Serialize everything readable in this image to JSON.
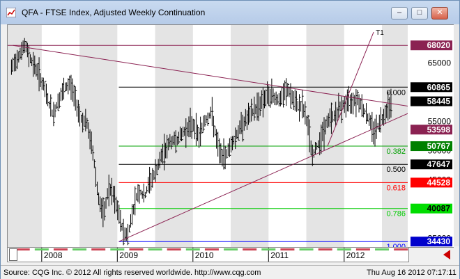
{
  "window": {
    "title": "QFA - FTSE Index, Adjusted Weekly Continuation",
    "buttons": {
      "minimize": "–",
      "maximize": "□",
      "close": "✕"
    }
  },
  "status_bar": {
    "source": "Source: CQG Inc. © 2012 All rights reserved worldwide. http://www.cqg.com",
    "timestamp": "Thu Aug 16 2012 07:17:11"
  },
  "colors": {
    "price_bars": "#000000",
    "trendline": "#8b2252",
    "fib_0": "#000000",
    "fib_382": "#00a000",
    "fib_618": "#ff0000",
    "fib_786": "#00cc00",
    "fib_100": "#0000ff",
    "year_band": "#e4e4e4"
  },
  "chart_data": {
    "type": "line",
    "title": "QFA - FTSE Index, Adjusted Weekly Continuation",
    "x_tick_labels": [
      "2008",
      "2009",
      "2010",
      "2011",
      "2012"
    ],
    "y_tick_labels": [
      65000,
      55000,
      50000,
      45000,
      35000
    ],
    "ylim": [
      33500,
      71500
    ],
    "xlim": [
      2007.55,
      2012.85
    ],
    "price_labels": [
      {
        "value": 68020,
        "text": "68020",
        "bg": "#8b2252",
        "fg": "#ffffff"
      },
      {
        "value": 60865,
        "text": "60865",
        "bg": "#000000",
        "fg": "#ffffff"
      },
      {
        "value": 58445,
        "text": "58445",
        "bg": "#000000",
        "fg": "#ffffff"
      },
      {
        "value": 53598,
        "text": "53598",
        "bg": "#8b2252",
        "fg": "#ffffff"
      },
      {
        "value": 50767,
        "text": "50767",
        "bg": "#008000",
        "fg": "#ffffff"
      },
      {
        "value": 47647,
        "text": "47647",
        "bg": "#000000",
        "fg": "#ffffff"
      },
      {
        "value": 44528,
        "text": "44528",
        "bg": "#ff0000",
        "fg": "#ffffff"
      },
      {
        "value": 40087,
        "text": "40087",
        "bg": "#00dd00",
        "fg": "#000000"
      },
      {
        "value": 34430,
        "text": "34430",
        "bg": "#0000cc",
        "fg": "#ffffff"
      }
    ],
    "fib_levels": [
      {
        "label": "0.000",
        "value": 60865,
        "color": "#000000",
        "start": 2009.02
      },
      {
        "label": "0.382",
        "value": 50767,
        "color": "#00a000",
        "start": 2009.02
      },
      {
        "label": "0.500",
        "value": 47647,
        "color": "#000000",
        "start": 2009.02
      },
      {
        "label": "0.618",
        "value": 44528,
        "color": "#ff0000",
        "start": 2009.02
      },
      {
        "label": "0.786",
        "value": 40087,
        "color": "#00cc00",
        "start": 2009.02
      },
      {
        "label": "1.000",
        "value": 34430,
        "color": "#0000ff",
        "start": 2009.02
      }
    ],
    "horizontal_lines": [
      {
        "value": 68020,
        "color": "#8b2252"
      }
    ],
    "trendlines": [
      {
        "name": "T1",
        "points": [
          [
            2011.78,
            50767
          ],
          [
            2012.39,
            70300
          ]
        ],
        "color": "#8b2252",
        "label": "T1"
      },
      {
        "name": "T2",
        "points": [
          [
            2009.02,
            34430
          ],
          [
            2012.85,
            56400
          ]
        ],
        "color": "#8b2252",
        "label": "T2"
      },
      {
        "name": "",
        "points": [
          [
            2007.62,
            68020
          ],
          [
            2012.85,
            57600
          ]
        ],
        "color": "#8b2252",
        "label": ""
      }
    ],
    "year_bands": [
      [
        2007.55,
        2008.0
      ],
      [
        2008.5,
        2009.0
      ],
      [
        2009.5,
        2010.0
      ],
      [
        2010.5,
        2011.0
      ],
      [
        2011.5,
        2012.0
      ],
      [
        2012.5,
        2012.85
      ]
    ],
    "price_keypoints": [
      [
        2007.6,
        64000
      ],
      [
        2007.7,
        66500
      ],
      [
        2007.78,
        68020
      ],
      [
        2007.86,
        65500
      ],
      [
        2007.95,
        63500
      ],
      [
        2008.05,
        60000
      ],
      [
        2008.15,
        56000
      ],
      [
        2008.22,
        58500
      ],
      [
        2008.3,
        60500
      ],
      [
        2008.38,
        61500
      ],
      [
        2008.45,
        58500
      ],
      [
        2008.52,
        55500
      ],
      [
        2008.6,
        54500
      ],
      [
        2008.68,
        49500
      ],
      [
        2008.75,
        42000
      ],
      [
        2008.82,
        38500
      ],
      [
        2008.88,
        43500
      ],
      [
        2008.94,
        42500
      ],
      [
        2009.02,
        39000
      ],
      [
        2009.08,
        36000
      ],
      [
        2009.14,
        35500
      ],
      [
        2009.2,
        39500
      ],
      [
        2009.26,
        42500
      ],
      [
        2009.3,
        43000
      ],
      [
        2009.36,
        42000
      ],
      [
        2009.42,
        44500
      ],
      [
        2009.5,
        46000
      ],
      [
        2009.6,
        49500
      ],
      [
        2009.7,
        51500
      ],
      [
        2009.8,
        52000
      ],
      [
        2009.9,
        53500
      ],
      [
        2010.0,
        54500
      ],
      [
        2010.08,
        52500
      ],
      [
        2010.15,
        55000
      ],
      [
        2010.25,
        56500
      ],
      [
        2010.32,
        51000
      ],
      [
        2010.4,
        48500
      ],
      [
        2010.48,
        50500
      ],
      [
        2010.55,
        52000
      ],
      [
        2010.65,
        54500
      ],
      [
        2010.75,
        56000
      ],
      [
        2010.85,
        57500
      ],
      [
        2010.95,
        59000
      ],
      [
        2011.05,
        59500
      ],
      [
        2011.15,
        58500
      ],
      [
        2011.25,
        60500
      ],
      [
        2011.35,
        58000
      ],
      [
        2011.45,
        57500
      ],
      [
        2011.52,
        54500
      ],
      [
        2011.58,
        49000
      ],
      [
        2011.65,
        51000
      ],
      [
        2011.72,
        53000
      ],
      [
        2011.8,
        55500
      ],
      [
        2011.88,
        56000
      ],
      [
        2011.95,
        57500
      ],
      [
        2012.02,
        58000
      ],
      [
        2012.1,
        58500
      ],
      [
        2012.18,
        59000
      ],
      [
        2012.26,
        57000
      ],
      [
        2012.34,
        55000
      ],
      [
        2012.4,
        53300
      ],
      [
        2012.46,
        54500
      ],
      [
        2012.54,
        56500
      ],
      [
        2012.62,
        58445
      ]
    ]
  }
}
